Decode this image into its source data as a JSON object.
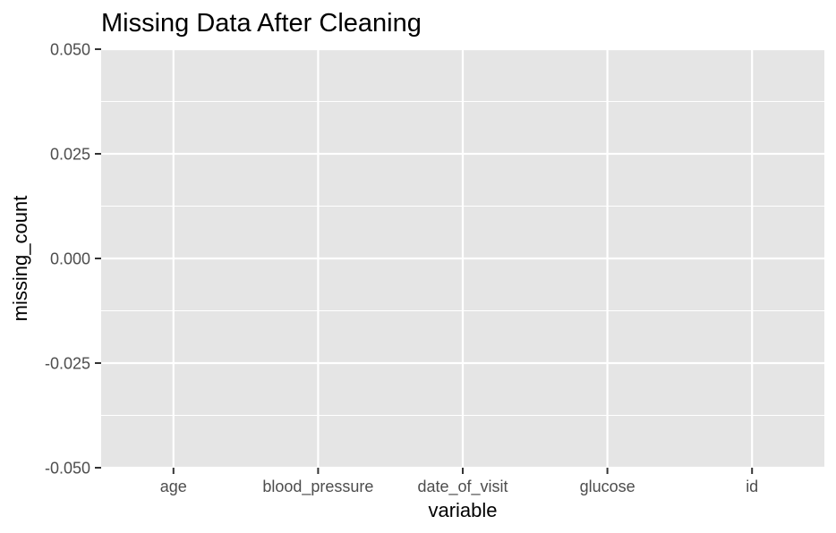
{
  "chart_data": {
    "type": "bar",
    "title": "Missing Data After Cleaning",
    "xlabel": "variable",
    "ylabel": "missing_count",
    "categories": [
      "age",
      "blood_pressure",
      "date_of_visit",
      "glucose",
      "id"
    ],
    "values": [
      0,
      0,
      0,
      0,
      0
    ],
    "ylim": [
      -0.05,
      0.05
    ],
    "yticks": [
      "0.050",
      "0.025",
      "0.000",
      "-0.025",
      "-0.050"
    ],
    "ytick_values": [
      0.05,
      0.025,
      0,
      -0.025,
      -0.05
    ],
    "grid": true,
    "legend": "none",
    "colors": {
      "panel_background": "#e5e5e5",
      "gridline": "#ffffff",
      "tick_mark": "#333333",
      "tick_text": "#4d4d4d",
      "bar_fill": "#595959"
    }
  }
}
